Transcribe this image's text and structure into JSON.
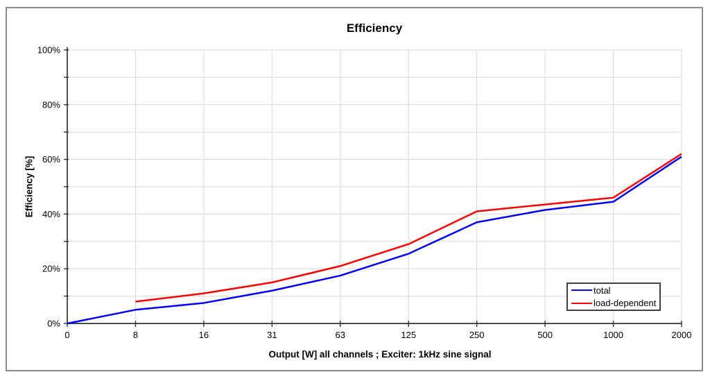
{
  "title": "Efficiency",
  "axes": {
    "y_label": "Efficiency [%]",
    "x_label": "Output [W]  all channels  ;  Exciter: 1kHz sine signal"
  },
  "legend": {
    "items": [
      {
        "label": "total",
        "color": "#0000ff"
      },
      {
        "label": "load-dependent",
        "color": "#ff0000"
      }
    ]
  },
  "colors": {
    "background": "#ffffff",
    "frame": "#8c8c8c",
    "grid": "#d9d9d9",
    "axis": "#333333",
    "tick_label": "#000000",
    "series_total": "#0000ff",
    "series_load_dependent": "#ff0000"
  },
  "chart_data": {
    "type": "line",
    "title": "Efficiency",
    "xlabel": "Output [W]  all channels  ;  Exciter: 1kHz sine signal",
    "ylabel": "Efficiency [%]",
    "categories": [
      "0",
      "8",
      "16",
      "31",
      "63",
      "125",
      "250",
      "500",
      "1000",
      "2000"
    ],
    "x_axis_scale": "category (powers-of-two watt steps, evenly spaced)",
    "ylim": [
      0,
      100
    ],
    "y_major_tick_step": 20,
    "y_grid_step": 10,
    "y_tick_labels": [
      "0%",
      "20%",
      "40%",
      "60%",
      "80%",
      "100%"
    ],
    "grid": true,
    "legend_position": "bottom-right",
    "series": [
      {
        "name": "total",
        "color": "#0000ff",
        "values": [
          0,
          5,
          7.5,
          12,
          17.5,
          25.5,
          37,
          41.5,
          44.5,
          61
        ]
      },
      {
        "name": "load-dependent",
        "color": "#ff0000",
        "values": [
          null,
          8,
          11,
          15,
          21,
          29,
          41,
          43.5,
          46,
          62
        ]
      }
    ]
  }
}
